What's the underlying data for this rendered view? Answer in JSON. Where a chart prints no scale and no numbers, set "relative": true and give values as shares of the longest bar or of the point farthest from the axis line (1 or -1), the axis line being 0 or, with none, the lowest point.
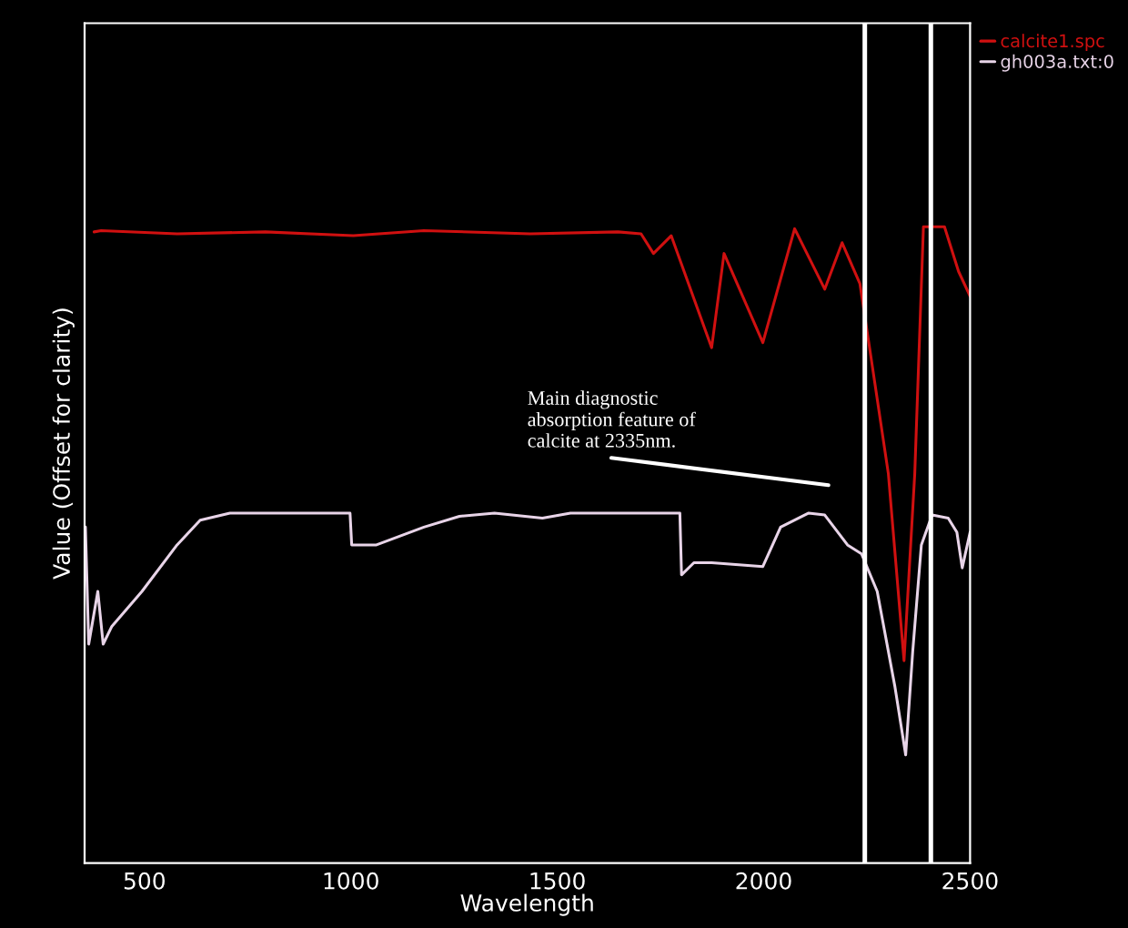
{
  "chart_data": {
    "type": "line",
    "xlabel": "Wavelength",
    "ylabel": "Value (Offset for clarity)",
    "relative": true,
    "xlim": [
      355,
      2500
    ],
    "xticks": [
      500,
      1000,
      1500,
      2000,
      2500
    ],
    "grid": false,
    "legend": "top right",
    "line_style": "solid",
    "marker": "none",
    "series": [
      {
        "name": "calcite1.spc",
        "color": "#d01010",
        "x": [
          378,
          395,
          579,
          793,
          1006,
          1177,
          1434,
          1647,
          1703,
          1733,
          1776,
          1874,
          1904,
          1998,
          2075,
          2148,
          2190,
          2233,
          2259,
          2302,
          2340,
          2366,
          2387,
          2438,
          2472,
          2500
        ],
        "values": [
          0.992,
          0.994,
          0.989,
          0.992,
          0.986,
          0.994,
          0.989,
          0.992,
          0.989,
          0.958,
          0.986,
          0.81,
          0.958,
          0.818,
          0.997,
          0.902,
          0.975,
          0.911,
          0.799,
          0.612,
          0.318,
          0.612,
          1.0,
          1.0,
          0.93,
          0.891
        ]
      },
      {
        "name": "gh003a.txt:0",
        "color": "#e8d4e8",
        "x": [
          357,
          365,
          387,
          400,
          421,
          494,
          579,
          635,
          707,
          998,
          1002,
          1062,
          1177,
          1263,
          1348,
          1464,
          1532,
          1797,
          1801,
          1831,
          1874,
          1998,
          2041,
          2109,
          2148,
          2203,
          2237,
          2275,
          2318,
          2344,
          2361,
          2382,
          2408,
          2447,
          2468,
          2481,
          2500
        ],
        "values": [
          0.528,
          0.344,
          0.427,
          0.344,
          0.372,
          0.427,
          0.5,
          0.539,
          0.55,
          0.55,
          0.5,
          0.5,
          0.528,
          0.545,
          0.55,
          0.542,
          0.55,
          0.55,
          0.453,
          0.472,
          0.472,
          0.466,
          0.528,
          0.55,
          0.547,
          0.5,
          0.486,
          0.427,
          0.277,
          0.17,
          0.332,
          0.5,
          0.547,
          0.542,
          0.52,
          0.464,
          0.52
        ]
      }
    ],
    "ref_lines": [
      {
        "axis": "x",
        "value": 2245,
        "color": "#ffffff"
      },
      {
        "axis": "x",
        "value": 2405,
        "color": "#ffffff"
      }
    ],
    "annotations": [
      "Main diagnostic\nabsorption feature of\ncalcite at 2335nm."
    ]
  }
}
